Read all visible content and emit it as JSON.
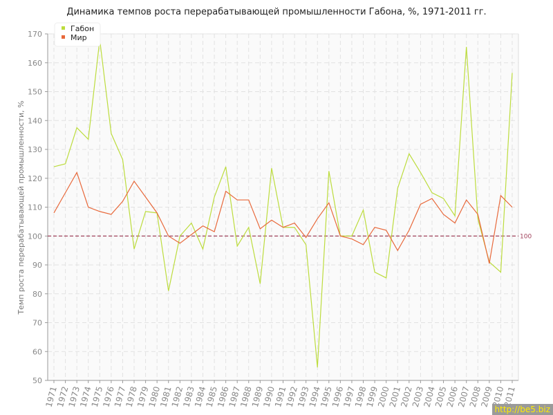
{
  "chart_data": {
    "type": "line",
    "title": "Динамика темпов роста перерабатывающей промышленности Габона, %, 1971-2011 гг.",
    "ylabel": "Темп роста перерабатывающей промышленности, %",
    "xlabel": "",
    "ylim": [
      50,
      170
    ],
    "yticks": [
      "50",
      "60",
      "70",
      "80",
      "90",
      "100",
      "110",
      "120",
      "130",
      "140",
      "150",
      "160",
      "170"
    ],
    "grid": true,
    "legend": "top-left",
    "reference_line": {
      "value": 100,
      "label": "100",
      "color": "#a0405a"
    },
    "x": [
      "1971",
      "1972",
      "1973",
      "1974",
      "1975",
      "1976",
      "1977",
      "1978",
      "1979",
      "1980",
      "1981",
      "1982",
      "1983",
      "1984",
      "1985",
      "1986",
      "1987",
      "1988",
      "1989",
      "1990",
      "1991",
      "1992",
      "1993",
      "1994",
      "1995",
      "1996",
      "1997",
      "1998",
      "1999",
      "2000",
      "2001",
      "2002",
      "2003",
      "2004",
      "2005",
      "2006",
      "2007",
      "2008",
      "2009",
      "2010",
      "2011"
    ],
    "series": [
      {
        "name": "Габон",
        "color": "#bcdc3c",
        "values": [
          124,
          125,
          137.5,
          133.5,
          168,
          135.5,
          126.5,
          95.5,
          108.5,
          108,
          81,
          100,
          104.5,
          95.5,
          113.5,
          124,
          96.5,
          103,
          83.5,
          123.5,
          103,
          103,
          97,
          54.5,
          122.5,
          100,
          100,
          109,
          87.5,
          85.5,
          116.5,
          128.5,
          122,
          115,
          113,
          107,
          165.5,
          106,
          91,
          87.5,
          156.5
        ]
      },
      {
        "name": "Мир",
        "color": "#e8683a",
        "values": [
          108,
          115,
          122,
          110,
          108.5,
          107.5,
          112,
          119,
          113.5,
          108,
          100,
          97.5,
          100.5,
          103.5,
          101.5,
          115.5,
          112.5,
          112.5,
          102.5,
          105.5,
          103,
          104.5,
          99.5,
          106,
          111.5,
          100,
          99,
          97,
          103,
          102,
          95,
          102,
          111,
          113,
          107.5,
          104.5,
          112.5,
          107.5,
          90.5,
          114,
          110
        ]
      }
    ]
  },
  "watermark": "http://be5.biz"
}
